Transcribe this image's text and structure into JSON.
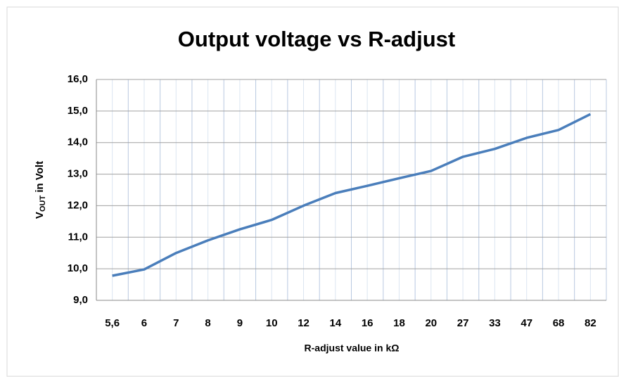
{
  "chart_data": {
    "type": "line",
    "title": "Output voltage vs R-adjust",
    "xlabel": "R-adjust value in kΩ",
    "ylabel_parts": [
      "V",
      "OUT",
      " in Volt"
    ],
    "categories": [
      "5,6",
      "6",
      "7",
      "8",
      "9",
      "10",
      "12",
      "14",
      "16",
      "18",
      "20",
      "27",
      "33",
      "47",
      "68",
      "82"
    ],
    "series": [
      {
        "color": "#4a7ebb",
        "values": [
          9.78,
          9.98,
          10.5,
          10.9,
          11.25,
          11.55,
          12.0,
          12.4,
          12.63,
          12.87,
          13.1,
          13.55,
          13.8,
          14.15,
          14.4,
          14.9
        ]
      }
    ],
    "ylim": [
      9,
      16
    ],
    "yticks": [
      {
        "value": 9,
        "label": "9,0"
      },
      {
        "value": 10,
        "label": "10,0"
      },
      {
        "value": 11,
        "label": "11,0"
      },
      {
        "value": 12,
        "label": "12,0"
      },
      {
        "value": 13,
        "label": "13,0"
      },
      {
        "value": 14,
        "label": "14,0"
      },
      {
        "value": 15,
        "label": "15,0"
      },
      {
        "value": 16,
        "label": "16,0"
      }
    ],
    "grid": true
  }
}
